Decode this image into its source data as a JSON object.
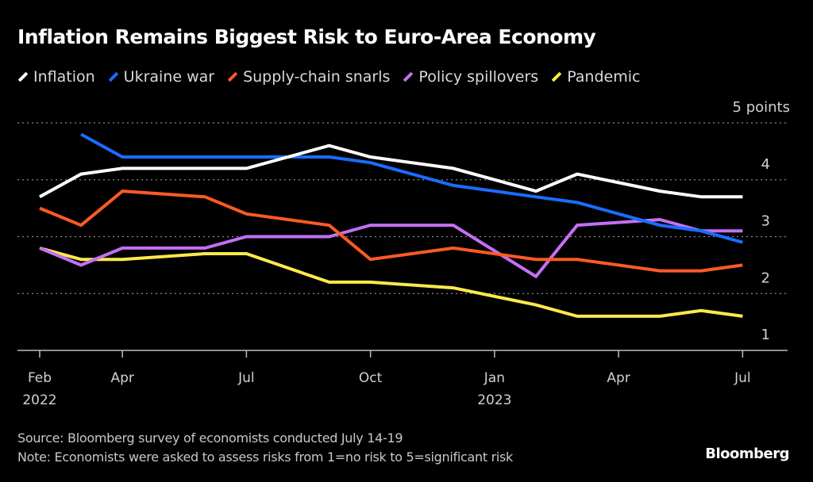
{
  "chart_data": {
    "type": "line",
    "title": "Inflation Remains Biggest Risk to Euro-Area Economy",
    "xlabel": "",
    "ylabel": "points",
    "y_unit_label": "5 points",
    "ylim": [
      1,
      5
    ],
    "yticks": [
      1,
      2,
      3,
      4,
      5
    ],
    "ytick_labels": [
      "1",
      "2",
      "3",
      "4",
      "5 points"
    ],
    "grid": true,
    "legend_position": "top-left",
    "x": [
      "2022-02",
      "2022-03",
      "2022-04",
      "2022-06",
      "2022-07",
      "2022-09",
      "2022-10",
      "2022-12",
      "2023-02",
      "2023-03",
      "2023-05",
      "2023-06",
      "2023-07"
    ],
    "xticks": [
      {
        "month": "2022-02",
        "label": "Feb",
        "sublabel": "2022"
      },
      {
        "month": "2022-04",
        "label": "Apr",
        "sublabel": ""
      },
      {
        "month": "2022-07",
        "label": "Jul",
        "sublabel": ""
      },
      {
        "month": "2022-10",
        "label": "Oct",
        "sublabel": ""
      },
      {
        "month": "2023-01",
        "label": "Jan",
        "sublabel": "2023"
      },
      {
        "month": "2023-04",
        "label": "Apr",
        "sublabel": ""
      },
      {
        "month": "2023-07",
        "label": "Jul",
        "sublabel": ""
      }
    ],
    "series": [
      {
        "name": "Inflation",
        "color": "#ffffff",
        "values": [
          3.7,
          4.1,
          4.2,
          4.2,
          4.2,
          4.6,
          4.4,
          4.2,
          3.8,
          4.1,
          3.8,
          3.7,
          3.7
        ]
      },
      {
        "name": "Ukraine war",
        "color": "#1a6dff",
        "values": [
          null,
          4.8,
          4.4,
          4.4,
          4.4,
          4.4,
          4.3,
          3.9,
          3.7,
          3.6,
          3.2,
          3.1,
          2.9
        ]
      },
      {
        "name": "Supply-chain snarls",
        "color": "#ff5a24",
        "values": [
          3.5,
          3.2,
          3.8,
          3.7,
          3.4,
          3.2,
          2.6,
          2.8,
          2.6,
          2.6,
          2.4,
          2.4,
          2.5
        ]
      },
      {
        "name": "Policy spillovers",
        "color": "#c46ff5",
        "values": [
          2.8,
          2.5,
          2.8,
          2.8,
          3.0,
          3.0,
          3.2,
          3.2,
          2.3,
          3.2,
          3.3,
          3.1,
          3.1
        ]
      },
      {
        "name": "Pandemic",
        "color": "#ffe94d",
        "values": [
          2.8,
          2.6,
          2.6,
          2.7,
          2.7,
          2.2,
          2.2,
          2.1,
          1.8,
          1.6,
          1.6,
          1.7,
          1.6
        ]
      }
    ],
    "source": "Source: Bloomberg survey of economists conducted July 14-19",
    "note": "Note: Economists were asked to assess risks from 1=no risk to 5=significant risk"
  },
  "brand": "Bloomberg"
}
